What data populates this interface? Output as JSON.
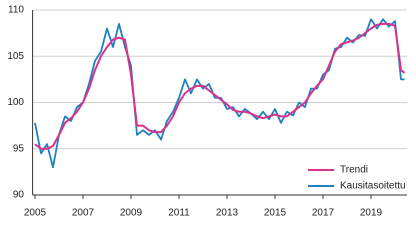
{
  "chart_data": {
    "type": "line",
    "x": [
      2005.0,
      2005.25,
      2005.5,
      2005.75,
      2006.0,
      2006.25,
      2006.5,
      2006.75,
      2007.0,
      2007.25,
      2007.5,
      2007.75,
      2008.0,
      2008.25,
      2008.5,
      2008.75,
      2009.0,
      2009.25,
      2009.5,
      2009.75,
      2010.0,
      2010.25,
      2010.5,
      2010.75,
      2011.0,
      2011.25,
      2011.5,
      2011.75,
      2012.0,
      2012.25,
      2012.5,
      2012.75,
      2013.0,
      2013.25,
      2013.5,
      2013.75,
      2014.0,
      2014.25,
      2014.5,
      2014.75,
      2015.0,
      2015.25,
      2015.5,
      2015.75,
      2016.0,
      2016.25,
      2016.5,
      2016.75,
      2017.0,
      2017.25,
      2017.5,
      2017.75,
      2018.0,
      2018.25,
      2018.5,
      2018.75,
      2019.0,
      2019.25,
      2019.5,
      2019.75,
      2020.0,
      2020.25,
      2020.4
    ],
    "series": [
      {
        "name": "Trendi",
        "color": "#d9328a",
        "values": [
          95.5,
          95,
          95,
          95.3,
          96.5,
          97.8,
          98.3,
          99,
          100,
          101.5,
          103.5,
          105,
          106,
          106.8,
          107,
          106.8,
          103,
          97.5,
          97.5,
          97,
          96.8,
          96.8,
          97.5,
          98.5,
          100,
          101,
          101.5,
          101.8,
          101.8,
          101.3,
          100.8,
          100.3,
          99.8,
          99.2,
          99,
          99,
          98.8,
          98.5,
          98.3,
          98.5,
          98.7,
          98.5,
          98.5,
          99,
          99.5,
          100,
          101,
          101.8,
          102.5,
          104,
          105.5,
          106.3,
          106.5,
          106.7,
          107,
          107.5,
          108,
          108.4,
          108.5,
          108.5,
          108.3,
          103.5,
          103.2
        ]
      },
      {
        "name": "Kausitasoitettu",
        "color": "#1f82c0",
        "values": [
          97.8,
          94.5,
          95.5,
          93,
          96.5,
          98.5,
          98,
          99.5,
          100,
          102,
          104.5,
          105.5,
          108,
          106,
          108.5,
          106,
          104,
          96.5,
          97,
          96.5,
          97,
          96,
          98,
          99,
          100.5,
          102.5,
          101,
          102.5,
          101.5,
          102,
          100.5,
          100.5,
          99.3,
          99.5,
          98.5,
          99.3,
          98.8,
          98.2,
          99,
          98.2,
          99.3,
          97.8,
          99,
          98.6,
          100,
          99.5,
          101.5,
          101.5,
          103,
          103.5,
          105.8,
          106,
          107,
          106.5,
          107.3,
          107.2,
          109,
          108,
          109,
          108.2,
          108.8,
          102.5,
          102.5
        ]
      }
    ],
    "xlim": [
      2004.9,
      2020.5
    ],
    "xticks": [
      2005,
      2007,
      2009,
      2011,
      2013,
      2015,
      2017,
      2019
    ],
    "ylim": [
      90,
      110
    ],
    "yticks": [
      90,
      95,
      100,
      105,
      110
    ],
    "grid": true,
    "legend": "lower right"
  }
}
